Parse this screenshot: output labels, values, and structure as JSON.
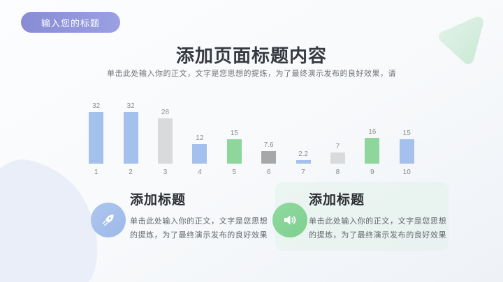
{
  "badge": {
    "label": "输入您的标题"
  },
  "header": {
    "title": "添加页面标题内容",
    "subtitle": "单击此处输入你的正文，文字是您思想的提炼，为了最终演示发布的良好效果，请"
  },
  "chart_data": {
    "type": "bar",
    "categories": [
      "1",
      "2",
      "3",
      "4",
      "5",
      "6",
      "7",
      "8",
      "9",
      "10"
    ],
    "values": [
      32,
      32,
      28,
      12,
      15,
      7.6,
      2.2,
      7,
      16,
      15
    ],
    "bar_colors": [
      "#a4c0ec",
      "#a4c0ec",
      "#d8dadb",
      "#a4c0ec",
      "#8ed69c",
      "#a5a7a8",
      "#a4c0ec",
      "#d8dadb",
      "#8ed69c",
      "#a4c0ec"
    ],
    "title": "",
    "xlabel": "",
    "ylabel": "",
    "ylim": [
      0,
      32
    ],
    "grid": false,
    "legend": false,
    "value_labels_shown": true
  },
  "blocks": [
    {
      "icon": "rocket-icon",
      "icon_color": "#a5bfec",
      "title": "添加标题",
      "body": "单击此处输入你的正文，文字是您思想的提炼，为了最终演示发布的良好效果"
    },
    {
      "icon": "speaker-icon",
      "icon_color": "#86d694",
      "title": "添加标题",
      "body": "单击此处输入你的正文，文字是您思想的提炼，为了最终演示发布的良好效果"
    }
  ],
  "colors": {
    "badge": "#8f94dc",
    "bar_blue": "#a4c0ec",
    "bar_green": "#8ed69c",
    "bar_gray_light": "#d8dadb",
    "bar_gray_dark": "#a5a7a8",
    "deco_triangle": "#d4ecdd",
    "deco_blob": "#e9eef8"
  }
}
